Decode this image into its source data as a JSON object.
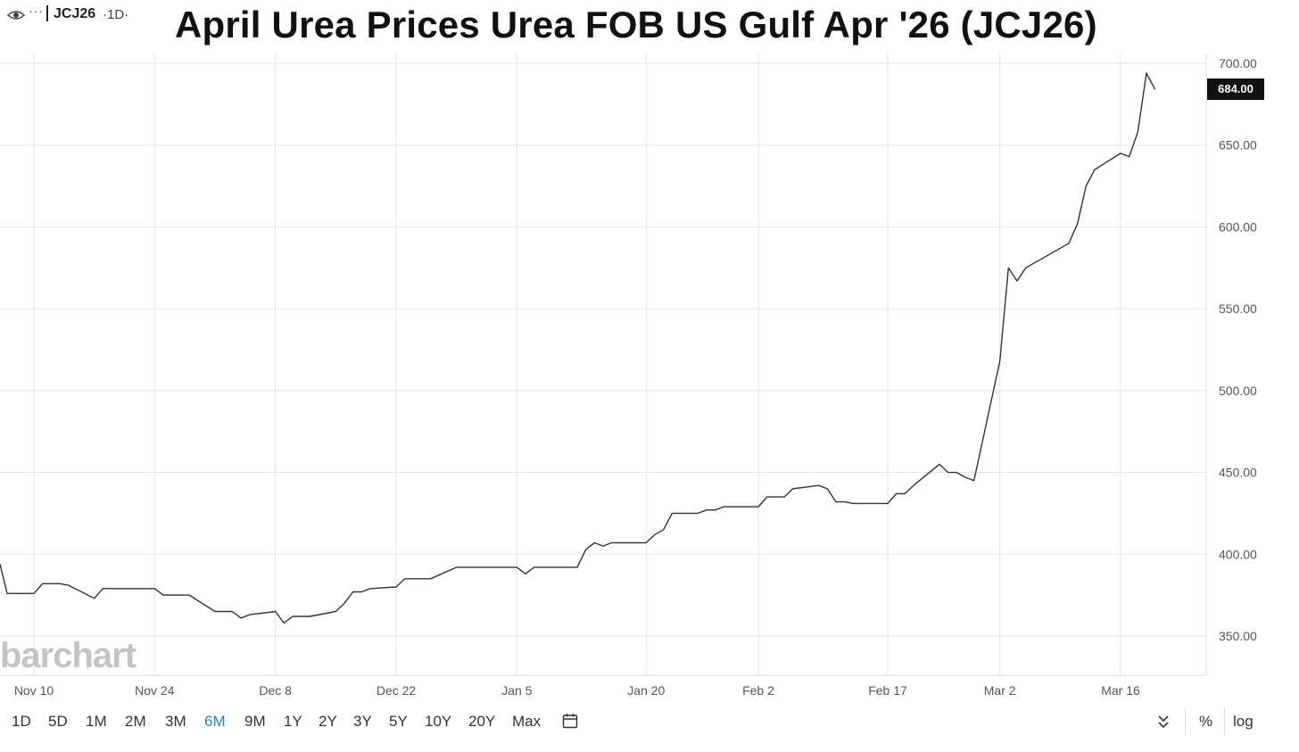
{
  "header": {
    "symbol": "JCJ26",
    "interval": "·1D·",
    "menu_dots": "···",
    "eye_icon": "eye-icon"
  },
  "watermark": "barchart",
  "last_price_label": "684.00",
  "range_bar": {
    "options": [
      "1D",
      "5D",
      "1M",
      "2M",
      "3M",
      "6M",
      "9M",
      "1Y",
      "2Y",
      "3Y",
      "5Y",
      "10Y",
      "20Y",
      "Max"
    ],
    "active": "6M",
    "calendar_icon": "calendar-icon",
    "collapse_icon": "double-chevron-down-icon",
    "percent_label": "%",
    "log_label": "log"
  },
  "colors": {
    "line": "#333333",
    "grid": "#e3e3e3",
    "active": "#2a7fc0",
    "tag_bg": "#111111"
  },
  "chart_data": {
    "type": "line",
    "title": "April Urea Prices Urea FOB US Gulf Apr '26 (JCJ26)",
    "xlabel": "",
    "ylabel": "",
    "ylim": [
      326,
      700
    ],
    "y_ticks": [
      "350.00",
      "400.00",
      "450.00",
      "500.00",
      "550.00",
      "600.00",
      "650.00",
      "700.00"
    ],
    "y_tick_values": [
      350,
      400,
      450,
      500,
      550,
      600,
      650,
      700
    ],
    "x_ticks": [
      "Nov 10",
      "Nov 24",
      "Dec 8",
      "Dec 22",
      "Jan 5",
      "Jan 20",
      "Feb 2",
      "Feb 17",
      "Mar 2",
      "Mar 16"
    ],
    "x_tick_dates": [
      "2025-11-10",
      "2025-11-24",
      "2025-12-08",
      "2025-12-22",
      "2026-01-05",
      "2026-01-20",
      "2026-02-02",
      "2026-02-17",
      "2026-03-02",
      "2026-03-16"
    ],
    "grid": true,
    "series": [
      {
        "name": "",
        "x": [
          "2025-11-07",
          "2025-11-07",
          "2025-11-10",
          "2025-11-11",
          "2025-11-12",
          "2025-11-13",
          "2025-11-14",
          "2025-11-17",
          "2025-11-18",
          "2025-11-19",
          "2025-11-20",
          "2025-11-21",
          "2025-11-24",
          "2025-11-25",
          "2025-11-26",
          "2025-11-28",
          "2025-12-01",
          "2025-12-02",
          "2025-12-03",
          "2025-12-04",
          "2025-12-05",
          "2025-12-08",
          "2025-12-09",
          "2025-12-10",
          "2025-12-11",
          "2025-12-12",
          "2025-12-15",
          "2025-12-16",
          "2025-12-17",
          "2025-12-18",
          "2025-12-19",
          "2025-12-22",
          "2025-12-23",
          "2025-12-24",
          "2025-12-26",
          "2025-12-29",
          "2025-12-30",
          "2025-12-31",
          "2026-01-02",
          "2026-01-05",
          "2026-01-06",
          "2026-01-07",
          "2026-01-08",
          "2026-01-09",
          "2026-01-12",
          "2026-01-13",
          "2026-01-14",
          "2026-01-15",
          "2026-01-16",
          "2026-01-20",
          "2026-01-21",
          "2026-01-22",
          "2026-01-23",
          "2026-01-26",
          "2026-01-27",
          "2026-01-28",
          "2026-01-29",
          "2026-01-30",
          "2026-02-02",
          "2026-02-03",
          "2026-02-04",
          "2026-02-05",
          "2026-02-06",
          "2026-02-09",
          "2026-02-10",
          "2026-02-11",
          "2026-02-12",
          "2026-02-13",
          "2026-02-17",
          "2026-02-18",
          "2026-02-19",
          "2026-02-20",
          "2026-02-23",
          "2026-02-24",
          "2026-02-25",
          "2026-02-26",
          "2026-02-27",
          "2026-03-02",
          "2026-03-03",
          "2026-03-04",
          "2026-03-05",
          "2026-03-06",
          "2026-03-09",
          "2026-03-10",
          "2026-03-11",
          "2026-03-12",
          "2026-03-13",
          "2026-03-16",
          "2026-03-17",
          "2026-03-18",
          "2026-03-19",
          "2026-03-20"
        ],
        "values": [
          394,
          376,
          376,
          382,
          382,
          382,
          381,
          373,
          379,
          379,
          379,
          379,
          379,
          375,
          375,
          375,
          365,
          365,
          365,
          361,
          363,
          365,
          358,
          362,
          362,
          362,
          365,
          370,
          377,
          377,
          379,
          380,
          385,
          385,
          385,
          392,
          392,
          392,
          392,
          392,
          388,
          392,
          392,
          392,
          392,
          403,
          407,
          405,
          407,
          407,
          412,
          415,
          425,
          425,
          427,
          427,
          429,
          429,
          429,
          435,
          435,
          435,
          440,
          442,
          440,
          432,
          432,
          431,
          431,
          437,
          437,
          442,
          455,
          450,
          450,
          447,
          445,
          518,
          575,
          567,
          575,
          578,
          587,
          590,
          602,
          625,
          635,
          645,
          643,
          658,
          694,
          684
        ]
      }
    ]
  }
}
